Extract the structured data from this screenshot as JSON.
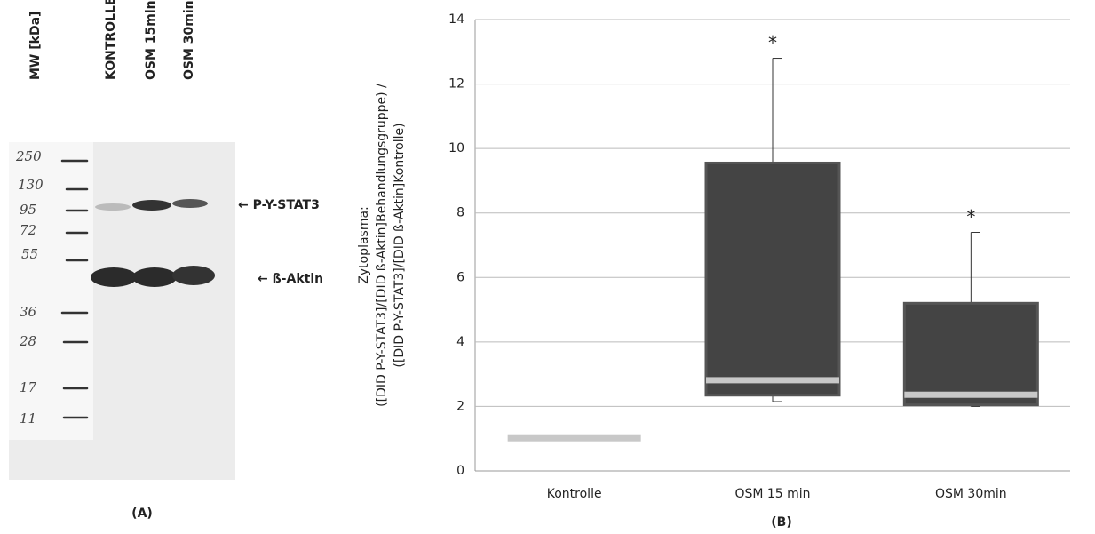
{
  "blot": {
    "mw_label": "MW [kDa]",
    "lanes": [
      "KONTROLLE",
      "OSM 15min",
      "OSM 30min"
    ],
    "markers": [
      "250",
      "130",
      "95",
      "72",
      "55",
      "36",
      "28",
      "17",
      "11"
    ],
    "band_labels": [
      "← P-Y-STAT3",
      "← ß-Aktin"
    ],
    "panel": "(A)"
  },
  "chart_data": {
    "type": "box",
    "panel": "(B)",
    "y_label": [
      "Zytoplasma:",
      "([DID P-Y-STAT3]/[DID ß-Aktin]Behandlungsgruppe) /",
      "([DID P-Y-STAT3]/[DID ß-Aktin]Kontrolle)"
    ],
    "categories": [
      "Kontrolle",
      "OSM 15 min",
      "OSM 30min"
    ],
    "boxes": [
      {
        "min": 1,
        "q1": 1,
        "median": 1,
        "q3": 1,
        "max": 1
      },
      {
        "min": 2.15,
        "q1": 2.35,
        "median": 2.8,
        "q3": 9.55,
        "max": 12.8
      },
      {
        "min": 2.0,
        "q1": 2.05,
        "median": 2.35,
        "q3": 5.2,
        "max": 7.4
      }
    ],
    "annotations": [
      null,
      "*",
      "*"
    ],
    "color": "#444444",
    "ylim": [
      0,
      14
    ],
    "yticks": [
      0,
      2,
      4,
      6,
      8,
      10,
      12,
      14
    ],
    "grid": true
  }
}
